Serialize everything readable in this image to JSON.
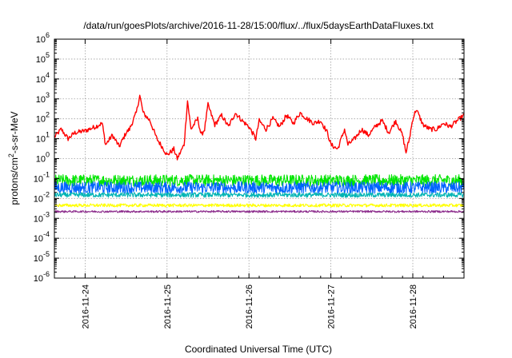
{
  "chart_data": {
    "type": "line",
    "title": "/data/run/goesPlots/archive/2016-11-28/15:00/flux/../flux/5daysEarthDataFluxes.txt",
    "xlabel": "Coordinated Universal Time (UTC)",
    "ylabel": {
      "prefix": "protons/cm",
      "sup": "2",
      "suffix": "-s-sr-MeV"
    },
    "y_scale": "log",
    "ylim": [
      1e-06,
      1000000.0
    ],
    "xlim": [
      "2016-11-23T15:00",
      "2016-11-28T15:00"
    ],
    "grid": true,
    "x_ticks": [
      {
        "date": "2016-11-24T00:00",
        "label": "2016-11-24"
      },
      {
        "date": "2016-11-25T00:00",
        "label": "2016-11-25"
      },
      {
        "date": "2016-11-26T00:00",
        "label": "2016-11-26"
      },
      {
        "date": "2016-11-27T00:00",
        "label": "2016-11-27"
      },
      {
        "date": "2016-11-28T00:00",
        "label": "2016-11-28"
      }
    ],
    "y_ticks": [
      {
        "value": 1e-06,
        "base": "10",
        "exp": "-6"
      },
      {
        "value": 1e-05,
        "base": "10",
        "exp": "-5"
      },
      {
        "value": 0.0001,
        "base": "10",
        "exp": "-4"
      },
      {
        "value": 0.001,
        "base": "10",
        "exp": "-3"
      },
      {
        "value": 0.01,
        "base": "10",
        "exp": "-2"
      },
      {
        "value": 0.1,
        "base": "10",
        "exp": "-1"
      },
      {
        "value": 1,
        "base": "10",
        "exp": "0"
      },
      {
        "value": 10,
        "base": "10",
        "exp": "1"
      },
      {
        "value": 100,
        "base": "10",
        "exp": "2"
      },
      {
        "value": 1000,
        "base": "10",
        "exp": "3"
      },
      {
        "value": 10000,
        "base": "10",
        "exp": "4"
      },
      {
        "value": 100000,
        "base": "10",
        "exp": "5"
      },
      {
        "value": 1000000,
        "base": "10",
        "exp": "6"
      }
    ],
    "series": [
      {
        "color": "#ff0000",
        "noise": 0.12,
        "points": [
          [
            "2016-11-23T15:00",
            12
          ],
          [
            "2016-11-23T17:00",
            30
          ],
          [
            "2016-11-23T19:00",
            10
          ],
          [
            "2016-11-23T21:00",
            20
          ],
          [
            "2016-11-24T00:00",
            25
          ],
          [
            "2016-11-24T03:00",
            40
          ],
          [
            "2016-11-24T05:00",
            60
          ],
          [
            "2016-11-24T06:00",
            5
          ],
          [
            "2016-11-24T08:00",
            15
          ],
          [
            "2016-11-24T10:00",
            4
          ],
          [
            "2016-11-24T12:00",
            20
          ],
          [
            "2016-11-24T13:00",
            30
          ],
          [
            "2016-11-24T15:00",
            200
          ],
          [
            "2016-11-24T16:00",
            1500
          ],
          [
            "2016-11-24T17:00",
            200
          ],
          [
            "2016-11-24T19:00",
            80
          ],
          [
            "2016-11-24T21:00",
            10
          ],
          [
            "2016-11-24T23:00",
            3
          ],
          [
            "2016-11-25T00:00",
            1.5
          ],
          [
            "2016-11-25T02:00",
            3
          ],
          [
            "2016-11-25T03:00",
            1
          ],
          [
            "2016-11-25T05:00",
            5
          ],
          [
            "2016-11-25T06:00",
            800
          ],
          [
            "2016-11-25T07:00",
            30
          ],
          [
            "2016-11-25T09:00",
            100
          ],
          [
            "2016-11-25T10:00",
            15
          ],
          [
            "2016-11-25T11:00",
            30
          ],
          [
            "2016-11-25T12:00",
            500
          ],
          [
            "2016-11-25T14:00",
            50
          ],
          [
            "2016-11-25T16:00",
            150
          ],
          [
            "2016-11-25T18:00",
            40
          ],
          [
            "2016-11-25T20:00",
            200
          ],
          [
            "2016-11-25T22:00",
            80
          ],
          [
            "2016-11-26T00:00",
            40
          ],
          [
            "2016-11-26T02:00",
            10
          ],
          [
            "2016-11-26T03:00",
            80
          ],
          [
            "2016-11-26T05:00",
            30
          ],
          [
            "2016-11-26T07:00",
            100
          ],
          [
            "2016-11-26T09:00",
            40
          ],
          [
            "2016-11-26T11:00",
            150
          ],
          [
            "2016-11-26T13:00",
            60
          ],
          [
            "2016-11-26T15:00",
            200
          ],
          [
            "2016-11-26T17:00",
            100
          ],
          [
            "2016-11-26T19:00",
            60
          ],
          [
            "2016-11-26T21:00",
            80
          ],
          [
            "2016-11-26T23:00",
            20
          ],
          [
            "2016-11-27T00:00",
            5
          ],
          [
            "2016-11-27T02:00",
            3
          ],
          [
            "2016-11-27T04:00",
            30
          ],
          [
            "2016-11-27T05:00",
            5
          ],
          [
            "2016-11-27T07:00",
            10
          ],
          [
            "2016-11-27T09:00",
            30
          ],
          [
            "2016-11-27T11:00",
            15
          ],
          [
            "2016-11-27T13:00",
            40
          ],
          [
            "2016-11-27T15:00",
            80
          ],
          [
            "2016-11-27T17:00",
            20
          ],
          [
            "2016-11-27T19:00",
            80
          ],
          [
            "2016-11-27T21:00",
            15
          ],
          [
            "2016-11-27T22:00",
            2
          ],
          [
            "2016-11-27T23:00",
            10
          ],
          [
            "2016-11-28T00:00",
            100
          ],
          [
            "2016-11-28T01:00",
            300
          ],
          [
            "2016-11-28T03:00",
            50
          ],
          [
            "2016-11-28T05:00",
            30
          ],
          [
            "2016-11-28T07:00",
            30
          ],
          [
            "2016-11-28T09:00",
            60
          ],
          [
            "2016-11-28T11:00",
            40
          ],
          [
            "2016-11-28T13:00",
            80
          ],
          [
            "2016-11-28T15:00",
            150
          ]
        ]
      },
      {
        "color": "#00e600",
        "base": 0.08,
        "noise": 0.3,
        "points": []
      },
      {
        "color": "#0064ff",
        "base": 0.035,
        "noise": 0.3,
        "points": []
      },
      {
        "color": "#00b4b4",
        "base": 0.015,
        "noise": 0.12,
        "points": []
      },
      {
        "color": "#ffff00",
        "base": 0.0045,
        "noise": 0.08,
        "points": []
      },
      {
        "color": "#8b2a8b",
        "base": 0.0022,
        "noise": 0.05,
        "points": []
      }
    ]
  }
}
